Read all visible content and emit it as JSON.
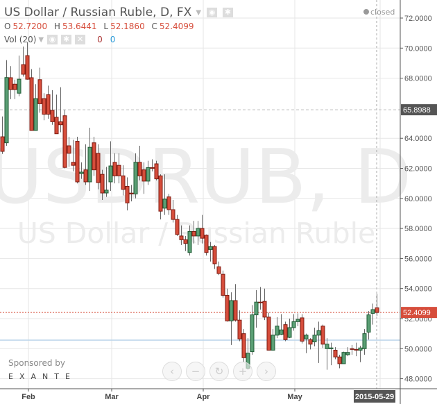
{
  "header": {
    "title": "US Dollar / Russian Ruble, D, FX",
    "ohlc": {
      "o_label": "O",
      "o": "52.7200",
      "h_label": "H",
      "h": "53.6441",
      "l_label": "L",
      "l": "52.1860",
      "c_label": "C",
      "c": "52.4099"
    },
    "volume": {
      "label": "Vol (20)",
      "value1": "0",
      "value2": "0"
    },
    "market_status": "closed"
  },
  "watermark": {
    "symbol": "USDRUB, D",
    "name": "US Dollar / Russian Ruble"
  },
  "sponsor": {
    "label": "Sponsored by",
    "brand": "EXANTE"
  },
  "colors": {
    "up": "#5b9f75",
    "down": "#d64d3b",
    "last_price_line": "#d64d3b"
  },
  "chart_data": {
    "type": "candlestick",
    "y_ticks": [
      "72.0000",
      "70.0000",
      "68.0000",
      "64.0000",
      "62.0000",
      "60.0000",
      "58.0000",
      "56.0000",
      "54.0000",
      "52.0000",
      "50.0000",
      "48.0000"
    ],
    "ylim": [
      47.2,
      73.2
    ],
    "x_ticks": [
      {
        "label": "Feb",
        "index": 6
      },
      {
        "label": "Mar",
        "index": 26
      },
      {
        "label": "Apr",
        "index": 48
      },
      {
        "label": "May",
        "index": 70
      }
    ],
    "last_date": "2015-05-29",
    "last_price": 52.4099,
    "marked_price": 65.8988,
    "marked_price_label": "65.8988",
    "last_price_label": "52.4099",
    "reference_line": 50.57,
    "grid": true,
    "candles": [
      [
        64.1,
        65.45,
        62.96,
        63.13
      ],
      [
        63.7,
        69.2,
        63.5,
        68.04
      ],
      [
        68.03,
        68.8,
        66.6,
        67.24
      ],
      [
        67.6,
        67.9,
        66.6,
        67.24
      ],
      [
        67.0,
        69.5,
        66.8,
        67.93
      ],
      [
        68.9,
        70.1,
        68.1,
        68.26
      ],
      [
        69.5,
        70.4,
        67.9,
        67.93
      ],
      [
        68.03,
        68.6,
        64.5,
        64.52
      ],
      [
        64.52,
        67.6,
        64.5,
        66.64
      ],
      [
        67.9,
        68.7,
        65.7,
        66.3
      ],
      [
        66.64,
        67.0,
        65.2,
        65.6
      ],
      [
        66.9,
        67.5,
        65.3,
        65.6
      ],
      [
        65.86,
        67.2,
        64.9,
        65.1
      ],
      [
        65.4,
        66.9,
        64.3,
        64.3
      ],
      [
        65.1,
        67.4,
        64.4,
        64.9
      ],
      [
        65.5,
        65.9,
        62.0,
        62.06
      ],
      [
        63.5,
        64.1,
        62.1,
        63.0
      ],
      [
        62.4,
        63.9,
        61.8,
        62.2
      ],
      [
        63.8,
        64.1,
        61.0,
        61.1
      ],
      [
        61.65,
        62.4,
        61.3,
        61.75
      ],
      [
        61.9,
        63.6,
        60.9,
        61.1
      ],
      [
        61.1,
        64.7,
        60.5,
        63.4
      ],
      [
        63.7,
        64.1,
        61.5,
        61.9
      ],
      [
        63.0,
        63.6,
        60.6,
        61.05
      ],
      [
        61.6,
        61.9,
        59.9,
        60.36
      ],
      [
        60.36,
        62.1,
        60.1,
        60.55
      ],
      [
        61.1,
        63.8,
        60.5,
        62.16
      ],
      [
        62.4,
        63.0,
        61.0,
        61.5
      ],
      [
        62.2,
        63.0,
        61.0,
        61.5
      ],
      [
        61.5,
        62.2,
        60.2,
        60.6
      ],
      [
        60.8,
        61.4,
        59.2,
        59.7
      ],
      [
        60.35,
        60.9,
        59.8,
        60.3
      ],
      [
        60.3,
        63.0,
        60.0,
        62.4
      ],
      [
        62.4,
        63.5,
        61.2,
        61.5
      ],
      [
        61.9,
        62.4,
        60.3,
        61.15
      ],
      [
        61.15,
        62.5,
        60.9,
        62.05
      ],
      [
        62.05,
        62.6,
        61.8,
        62.0
      ],
      [
        62.3,
        62.5,
        61.2,
        61.3
      ],
      [
        61.5,
        61.6,
        58.6,
        59.15
      ],
      [
        59.35,
        61.6,
        58.9,
        59.95
      ],
      [
        60.1,
        60.3,
        58.9,
        59.25
      ],
      [
        59.25,
        59.9,
        58.4,
        58.6
      ],
      [
        58.6,
        58.9,
        57.5,
        57.6
      ],
      [
        57.5,
        58.2,
        56.9,
        57.25
      ],
      [
        57.25,
        57.5,
        56.5,
        57.0
      ],
      [
        56.4,
        58.2,
        56.2,
        57.8
      ],
      [
        57.8,
        58.5,
        57.0,
        57.5
      ],
      [
        57.5,
        58.5,
        56.9,
        58.0
      ],
      [
        58.0,
        58.9,
        57.0,
        57.35
      ],
      [
        57.55,
        57.6,
        56.2,
        56.4
      ],
      [
        56.6,
        57.1,
        55.8,
        56.8
      ],
      [
        56.8,
        56.9,
        55.3,
        55.65
      ],
      [
        55.45,
        55.8,
        54.9,
        55.0
      ],
      [
        54.95,
        55.2,
        53.4,
        53.55
      ],
      [
        53.55,
        54.0,
        51.8,
        51.85
      ],
      [
        51.85,
        53.75,
        50.25,
        53.2
      ],
      [
        53.2,
        54.3,
        51.8,
        51.9
      ],
      [
        51.9,
        52.55,
        50.5,
        50.65
      ],
      [
        51.0,
        51.3,
        49.1,
        49.4
      ],
      [
        48.7,
        50.7,
        48.6,
        49.7
      ],
      [
        49.8,
        52.9,
        49.6,
        52.25
      ],
      [
        52.25,
        53.9,
        51.4,
        53.1
      ],
      [
        53.1,
        54.1,
        52.6,
        53.05
      ],
      [
        53.15,
        54.0,
        51.9,
        52.1
      ],
      [
        52.1,
        52.4,
        49.9,
        49.9
      ],
      [
        49.9,
        51.3,
        49.9,
        50.9
      ],
      [
        50.9,
        52.1,
        50.7,
        51.5
      ],
      [
        50.95,
        52.3,
        50.9,
        51.25
      ],
      [
        51.6,
        51.8,
        50.5,
        50.6
      ],
      [
        50.75,
        52.0,
        50.7,
        51.4
      ],
      [
        51.4,
        52.3,
        51.2,
        51.8
      ],
      [
        51.8,
        52.35,
        51.5,
        51.95
      ],
      [
        52.05,
        52.3,
        50.35,
        50.5
      ],
      [
        50.65,
        51.0,
        49.7,
        50.9
      ],
      [
        50.6,
        50.7,
        49.95,
        50.3
      ],
      [
        50.45,
        51.4,
        50.15,
        50.9
      ],
      [
        50.9,
        51.8,
        49.05,
        51.2
      ],
      [
        51.5,
        51.6,
        50.05,
        50.3
      ],
      [
        50.0,
        50.7,
        48.6,
        50.3
      ],
      [
        50.0,
        50.4,
        48.9,
        50.05
      ],
      [
        49.9,
        50.1,
        49.3,
        49.45
      ],
      [
        49.45,
        49.6,
        48.7,
        49.0
      ],
      [
        49.0,
        49.8,
        49.0,
        49.75
      ],
      [
        49.6,
        50.1,
        49.5,
        49.75
      ],
      [
        50.0,
        50.25,
        49.6,
        49.95
      ],
      [
        49.95,
        50.4,
        49.5,
        49.9
      ],
      [
        49.9,
        50.2,
        49.1,
        50.05
      ],
      [
        50.0,
        51.3,
        49.6,
        51.0
      ],
      [
        51.1,
        52.5,
        50.6,
        52.25
      ],
      [
        52.35,
        53.0,
        51.6,
        52.6
      ],
      [
        52.72,
        53.6441,
        52.186,
        52.4099
      ]
    ]
  }
}
